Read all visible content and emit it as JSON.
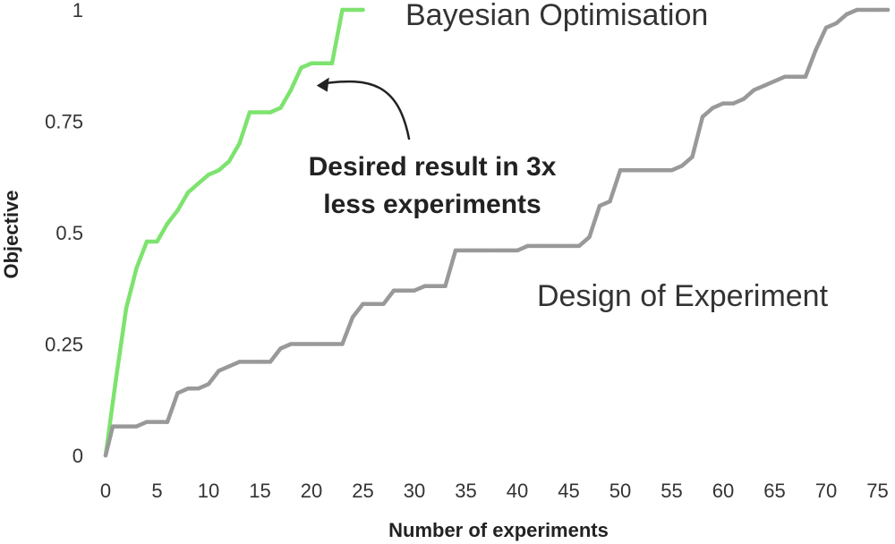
{
  "chart_data": {
    "type": "line",
    "xlabel": "Number of experiments",
    "ylabel": "Objective",
    "xlim": [
      0,
      76
    ],
    "ylim": [
      0,
      1
    ],
    "x_ticks": [
      0,
      5,
      10,
      15,
      20,
      25,
      30,
      35,
      40,
      45,
      50,
      55,
      60,
      65,
      70,
      75
    ],
    "y_ticks": [
      {
        "value": 0,
        "label": "0"
      },
      {
        "value": 0.25,
        "label": "0.25"
      },
      {
        "value": 0.5,
        "label": "0.5"
      },
      {
        "value": 0.75,
        "label": "0.75"
      },
      {
        "value": 1,
        "label": "1"
      }
    ],
    "grid": false,
    "series": [
      {
        "name": "Bayesian Optimisation",
        "color": "#7de36e",
        "x": [
          0,
          1,
          2,
          3,
          4,
          5,
          6,
          7,
          8,
          9,
          10,
          11,
          12,
          13,
          14,
          15,
          16,
          17,
          18,
          19,
          20,
          21,
          22,
          23,
          24,
          25
        ],
        "y": [
          0.0,
          0.17,
          0.33,
          0.42,
          0.48,
          0.48,
          0.52,
          0.55,
          0.59,
          0.61,
          0.63,
          0.64,
          0.66,
          0.7,
          0.77,
          0.77,
          0.77,
          0.78,
          0.82,
          0.87,
          0.88,
          0.88,
          0.88,
          1.0,
          1.0,
          1.0
        ]
      },
      {
        "name": "Design of Experiment",
        "color": "#999999",
        "x": [
          0,
          0.7,
          3,
          4,
          6,
          7,
          8,
          9,
          10,
          11,
          13,
          15,
          16,
          17,
          18,
          19,
          20,
          21,
          22,
          23,
          24,
          25,
          26,
          27,
          28,
          29,
          30,
          31,
          32,
          33,
          34,
          35,
          36,
          37,
          38,
          39,
          40,
          41,
          42,
          43,
          44,
          45,
          46,
          47,
          48,
          49,
          50,
          51,
          52,
          53,
          54,
          55,
          56,
          57,
          58,
          59,
          60,
          61,
          62,
          63,
          64,
          65,
          66,
          67,
          68,
          69,
          70,
          71,
          72,
          73,
          74,
          75,
          76
        ],
        "y": [
          0.0,
          0.065,
          0.065,
          0.075,
          0.075,
          0.14,
          0.15,
          0.15,
          0.16,
          0.19,
          0.21,
          0.21,
          0.21,
          0.24,
          0.25,
          0.25,
          0.25,
          0.25,
          0.25,
          0.25,
          0.31,
          0.34,
          0.34,
          0.34,
          0.37,
          0.37,
          0.37,
          0.38,
          0.38,
          0.38,
          0.46,
          0.46,
          0.46,
          0.46,
          0.46,
          0.46,
          0.46,
          0.47,
          0.47,
          0.47,
          0.47,
          0.47,
          0.47,
          0.49,
          0.56,
          0.57,
          0.64,
          0.64,
          0.64,
          0.64,
          0.64,
          0.64,
          0.65,
          0.67,
          0.76,
          0.78,
          0.79,
          0.79,
          0.8,
          0.82,
          0.83,
          0.84,
          0.85,
          0.85,
          0.85,
          0.91,
          0.96,
          0.97,
          0.99,
          1.0,
          1.0,
          1.0,
          1.0
        ]
      }
    ],
    "annotation": {
      "lines": [
        "Desired result in 3x",
        "less experiments"
      ],
      "arrow_target": [
        20.5,
        0.83
      ]
    }
  }
}
